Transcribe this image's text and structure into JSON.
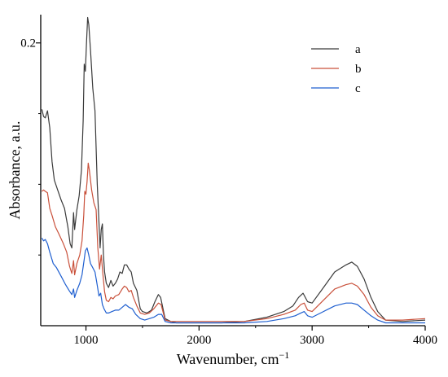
{
  "chart_data": {
    "type": "line",
    "xlabel": "Wavenumber, cm",
    "xlabel_sup": "−1",
    "ylabel": "Absorbance, a.u.",
    "xlim": [
      600,
      4000
    ],
    "ylim": [
      0,
      0.22
    ],
    "x_ticks": [
      1000,
      2000,
      3000,
      4000
    ],
    "x_tick_labels": [
      "1000",
      "2000",
      "3000",
      "4000"
    ],
    "y_ticks": [
      0.2
    ],
    "y_tick_labels": [
      "0.2"
    ],
    "grid": false,
    "legend_position": "top-right",
    "series": [
      {
        "name": "a",
        "color": "#3a3a3a",
        "points": [
          [
            610,
            0.153
          ],
          [
            625,
            0.148
          ],
          [
            640,
            0.147
          ],
          [
            660,
            0.152
          ],
          [
            680,
            0.14
          ],
          [
            700,
            0.116
          ],
          [
            720,
            0.103
          ],
          [
            750,
            0.096
          ],
          [
            780,
            0.089
          ],
          [
            810,
            0.083
          ],
          [
            840,
            0.07
          ],
          [
            860,
            0.058
          ],
          [
            875,
            0.055
          ],
          [
            890,
            0.08
          ],
          [
            900,
            0.068
          ],
          [
            920,
            0.082
          ],
          [
            940,
            0.092
          ],
          [
            960,
            0.11
          ],
          [
            975,
            0.145
          ],
          [
            985,
            0.185
          ],
          [
            995,
            0.18
          ],
          [
            1005,
            0.2
          ],
          [
            1015,
            0.218
          ],
          [
            1025,
            0.213
          ],
          [
            1040,
            0.195
          ],
          [
            1060,
            0.168
          ],
          [
            1080,
            0.152
          ],
          [
            1100,
            0.1
          ],
          [
            1115,
            0.073
          ],
          [
            1125,
            0.055
          ],
          [
            1135,
            0.068
          ],
          [
            1145,
            0.072
          ],
          [
            1155,
            0.05
          ],
          [
            1165,
            0.038
          ],
          [
            1180,
            0.03
          ],
          [
            1200,
            0.027
          ],
          [
            1220,
            0.032
          ],
          [
            1240,
            0.028
          ],
          [
            1260,
            0.03
          ],
          [
            1280,
            0.033
          ],
          [
            1300,
            0.038
          ],
          [
            1320,
            0.037
          ],
          [
            1340,
            0.043
          ],
          [
            1360,
            0.043
          ],
          [
            1380,
            0.04
          ],
          [
            1400,
            0.038
          ],
          [
            1420,
            0.03
          ],
          [
            1450,
            0.025
          ],
          [
            1480,
            0.012
          ],
          [
            1500,
            0.01
          ],
          [
            1540,
            0.009
          ],
          [
            1580,
            0.011
          ],
          [
            1610,
            0.017
          ],
          [
            1640,
            0.022
          ],
          [
            1660,
            0.02
          ],
          [
            1700,
            0.005
          ],
          [
            1750,
            0.003
          ],
          [
            1800,
            0.002
          ],
          [
            2000,
            0.002
          ],
          [
            2200,
            0.002
          ],
          [
            2400,
            0.003
          ],
          [
            2600,
            0.006
          ],
          [
            2750,
            0.01
          ],
          [
            2830,
            0.014
          ],
          [
            2880,
            0.02
          ],
          [
            2920,
            0.023
          ],
          [
            2960,
            0.017
          ],
          [
            3000,
            0.016
          ],
          [
            3100,
            0.027
          ],
          [
            3200,
            0.038
          ],
          [
            3300,
            0.043
          ],
          [
            3350,
            0.045
          ],
          [
            3400,
            0.042
          ],
          [
            3460,
            0.033
          ],
          [
            3520,
            0.02
          ],
          [
            3580,
            0.01
          ],
          [
            3650,
            0.004
          ],
          [
            3800,
            0.003
          ],
          [
            4000,
            0.004
          ]
        ]
      },
      {
        "name": "b",
        "color": "#c9503a",
        "points": [
          [
            610,
            0.095
          ],
          [
            625,
            0.096
          ],
          [
            640,
            0.095
          ],
          [
            660,
            0.094
          ],
          [
            680,
            0.083
          ],
          [
            700,
            0.078
          ],
          [
            730,
            0.07
          ],
          [
            760,
            0.065
          ],
          [
            800,
            0.058
          ],
          [
            830,
            0.052
          ],
          [
            855,
            0.042
          ],
          [
            875,
            0.037
          ],
          [
            890,
            0.046
          ],
          [
            900,
            0.036
          ],
          [
            920,
            0.044
          ],
          [
            945,
            0.05
          ],
          [
            965,
            0.06
          ],
          [
            980,
            0.078
          ],
          [
            990,
            0.095
          ],
          [
            1000,
            0.093
          ],
          [
            1010,
            0.102
          ],
          [
            1020,
            0.115
          ],
          [
            1030,
            0.11
          ],
          [
            1050,
            0.096
          ],
          [
            1070,
            0.087
          ],
          [
            1090,
            0.082
          ],
          [
            1105,
            0.055
          ],
          [
            1120,
            0.04
          ],
          [
            1135,
            0.05
          ],
          [
            1150,
            0.036
          ],
          [
            1165,
            0.024
          ],
          [
            1180,
            0.018
          ],
          [
            1200,
            0.017
          ],
          [
            1220,
            0.02
          ],
          [
            1240,
            0.019
          ],
          [
            1260,
            0.021
          ],
          [
            1290,
            0.022
          ],
          [
            1320,
            0.026
          ],
          [
            1340,
            0.028
          ],
          [
            1360,
            0.027
          ],
          [
            1380,
            0.024
          ],
          [
            1400,
            0.025
          ],
          [
            1420,
            0.02
          ],
          [
            1450,
            0.014
          ],
          [
            1480,
            0.009
          ],
          [
            1520,
            0.008
          ],
          [
            1560,
            0.009
          ],
          [
            1600,
            0.012
          ],
          [
            1640,
            0.016
          ],
          [
            1665,
            0.015
          ],
          [
            1700,
            0.004
          ],
          [
            1750,
            0.003
          ],
          [
            2000,
            0.003
          ],
          [
            2400,
            0.003
          ],
          [
            2600,
            0.005
          ],
          [
            2750,
            0.008
          ],
          [
            2850,
            0.011
          ],
          [
            2900,
            0.015
          ],
          [
            2930,
            0.016
          ],
          [
            2960,
            0.011
          ],
          [
            3000,
            0.01
          ],
          [
            3100,
            0.018
          ],
          [
            3200,
            0.026
          ],
          [
            3300,
            0.029
          ],
          [
            3350,
            0.03
          ],
          [
            3400,
            0.028
          ],
          [
            3460,
            0.022
          ],
          [
            3520,
            0.013
          ],
          [
            3580,
            0.007
          ],
          [
            3650,
            0.004
          ],
          [
            3800,
            0.004
          ],
          [
            4000,
            0.005
          ]
        ]
      },
      {
        "name": "c",
        "color": "#1f5fd0",
        "points": [
          [
            610,
            0.062
          ],
          [
            625,
            0.06
          ],
          [
            640,
            0.061
          ],
          [
            660,
            0.058
          ],
          [
            680,
            0.052
          ],
          [
            710,
            0.044
          ],
          [
            740,
            0.041
          ],
          [
            780,
            0.035
          ],
          [
            820,
            0.029
          ],
          [
            850,
            0.025
          ],
          [
            875,
            0.022
          ],
          [
            890,
            0.026
          ],
          [
            900,
            0.02
          ],
          [
            920,
            0.025
          ],
          [
            945,
            0.03
          ],
          [
            965,
            0.036
          ],
          [
            985,
            0.047
          ],
          [
            995,
            0.053
          ],
          [
            1010,
            0.055
          ],
          [
            1025,
            0.05
          ],
          [
            1040,
            0.044
          ],
          [
            1060,
            0.041
          ],
          [
            1080,
            0.038
          ],
          [
            1095,
            0.031
          ],
          [
            1115,
            0.021
          ],
          [
            1130,
            0.023
          ],
          [
            1145,
            0.015
          ],
          [
            1160,
            0.012
          ],
          [
            1180,
            0.009
          ],
          [
            1200,
            0.009
          ],
          [
            1230,
            0.01
          ],
          [
            1260,
            0.011
          ],
          [
            1290,
            0.011
          ],
          [
            1320,
            0.013
          ],
          [
            1350,
            0.015
          ],
          [
            1380,
            0.013
          ],
          [
            1410,
            0.012
          ],
          [
            1440,
            0.008
          ],
          [
            1480,
            0.005
          ],
          [
            1520,
            0.004
          ],
          [
            1560,
            0.005
          ],
          [
            1600,
            0.006
          ],
          [
            1640,
            0.008
          ],
          [
            1670,
            0.008
          ],
          [
            1700,
            0.003
          ],
          [
            1750,
            0.002
          ],
          [
            2000,
            0.002
          ],
          [
            2400,
            0.002
          ],
          [
            2600,
            0.003
          ],
          [
            2750,
            0.005
          ],
          [
            2850,
            0.007
          ],
          [
            2900,
            0.009
          ],
          [
            2930,
            0.01
          ],
          [
            2960,
            0.007
          ],
          [
            3000,
            0.006
          ],
          [
            3100,
            0.01
          ],
          [
            3200,
            0.014
          ],
          [
            3300,
            0.016
          ],
          [
            3350,
            0.016
          ],
          [
            3400,
            0.015
          ],
          [
            3460,
            0.011
          ],
          [
            3520,
            0.007
          ],
          [
            3580,
            0.004
          ],
          [
            3650,
            0.002
          ],
          [
            3800,
            0.002
          ],
          [
            4000,
            0.002
          ]
        ]
      }
    ]
  }
}
